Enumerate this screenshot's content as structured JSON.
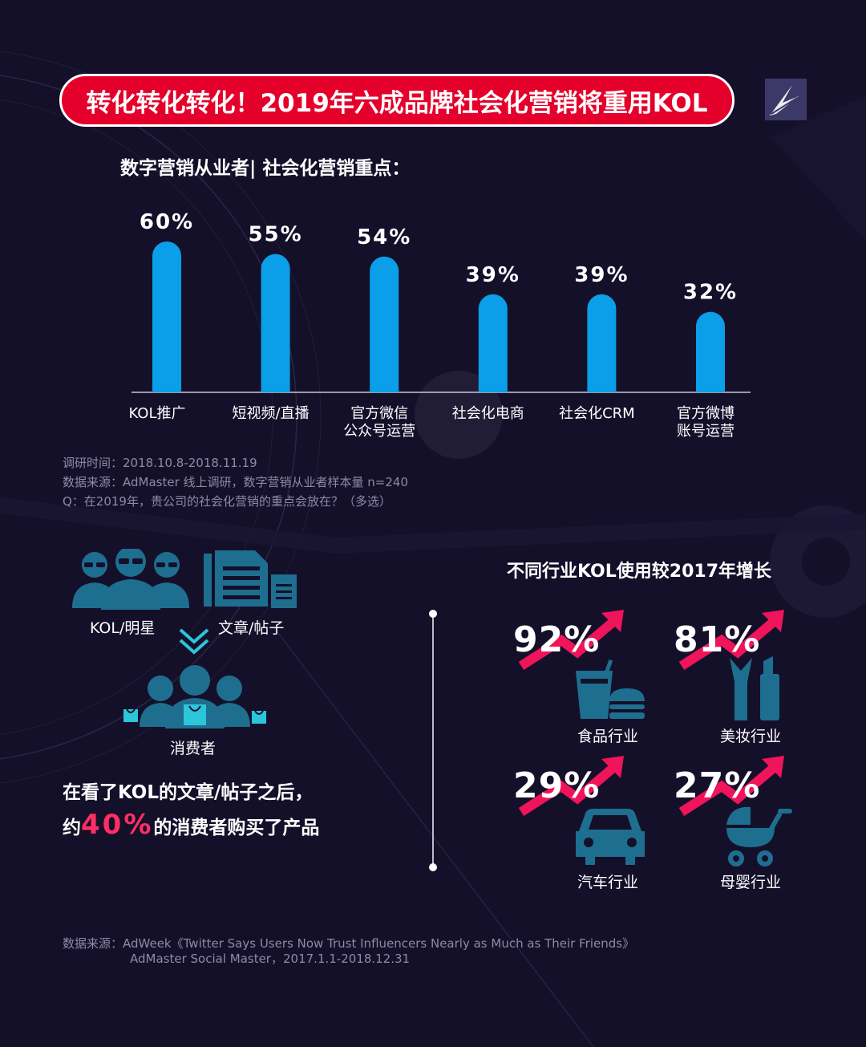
{
  "header": {
    "title": "转化转化转化！2019年六成品牌社会化营销将重用KOL"
  },
  "chart_data": {
    "type": "bar",
    "title": "数字营销从业者| 社会化营销重点：",
    "categories": [
      "KOL推广",
      "短视频/直播",
      "官方微信\n公众号运营",
      "社会化电商",
      "社会化CRM",
      "官方微博\n账号运营"
    ],
    "values": [
      60,
      55,
      54,
      39,
      39,
      32
    ],
    "data_labels": [
      "60%",
      "55%",
      "54%",
      "39%",
      "39%",
      "32%"
    ],
    "unit": "%",
    "ylim": [
      0,
      60
    ],
    "grid": false,
    "bar_color": "#0a9fe8"
  },
  "source_1": {
    "line1": "调研时间：2018.10.8-2018.11.19",
    "line2": "数据来源：AdMaster  线上调研，数字营销从业者样本量 n=240",
    "line3": "Q：在2019年，贵公司的社会化营销的重点会放在？（多选）"
  },
  "influence": {
    "kol_label": "KOL/明星",
    "article_label": "文章/帖子",
    "consumer_label": "消费者",
    "statement_pre": "在看了KOL的文章/帖子之后，",
    "statement_prefix2": "约",
    "statement_highlight": "40%",
    "statement_suffix2": "的消费者购买了产品",
    "icon_color": "#1e6e8f",
    "highlight_color": "#ff2e63"
  },
  "industry_growth": {
    "title": "不同行业KOL使用较2017年增长",
    "items": [
      {
        "value": "92%",
        "label": "食品行业",
        "icon": "food-icon"
      },
      {
        "value": "81%",
        "label": "美妆行业",
        "icon": "makeup-icon"
      },
      {
        "value": "29%",
        "label": "汽车行业",
        "icon": "car-icon"
      },
      {
        "value": "27%",
        "label": "母婴行业",
        "icon": "stroller-icon"
      }
    ],
    "arrow_color": "#f0145a"
  },
  "source_2": {
    "line1": "数据来源：AdWeek《Twitter Says Users Now Trust Influencers Nearly as Much as Their Friends》",
    "line2": "AdMaster Social Master，2017.1.1-2018.12.31"
  }
}
